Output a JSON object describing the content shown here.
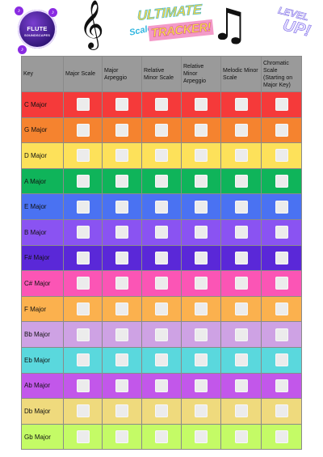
{
  "header": {
    "logo_title": "FLUTE",
    "logo_subtitle": "SOUNDSCAPES",
    "clef_glyph": "𝄞",
    "title_top": "ULTIMATE",
    "title_side": "Scale",
    "title_bottom": "TRACKER!",
    "notes_glyph": "♫",
    "badge_top": "LEVEL",
    "badge_bottom": "UP!"
  },
  "table": {
    "headers": [
      "Key",
      "Major Scale",
      "Major Arpeggio",
      "Relative Minor Scale",
      "Relative Minor Arpeggio",
      "Melodic Minor Scale",
      "Chromatic Scale (Starting on Major Key)"
    ],
    "rows": [
      {
        "key": "C Major",
        "color": "#f53a3a"
      },
      {
        "key": "G Major",
        "color": "#f5832f"
      },
      {
        "key": "D Major",
        "color": "#fde15a"
      },
      {
        "key": "A Major",
        "color": "#0fb45a"
      },
      {
        "key": "E Major",
        "color": "#4a72f2"
      },
      {
        "key": "B Major",
        "color": "#8a53f2"
      },
      {
        "key": "F# Major",
        "color": "#5a28d8"
      },
      {
        "key": "C# Major",
        "color": "#fb55b5"
      },
      {
        "key": "F Major",
        "color": "#fbb14e"
      },
      {
        "key": "Bb Major",
        "color": "#cea2e4"
      },
      {
        "key": "Eb Major",
        "color": "#5ad8dd"
      },
      {
        "key": "Ab Major",
        "color": "#c257ea"
      },
      {
        "key": "Db Major",
        "color": "#efda7d"
      },
      {
        "key": "Gb Major",
        "color": "#c4fb66"
      }
    ]
  }
}
